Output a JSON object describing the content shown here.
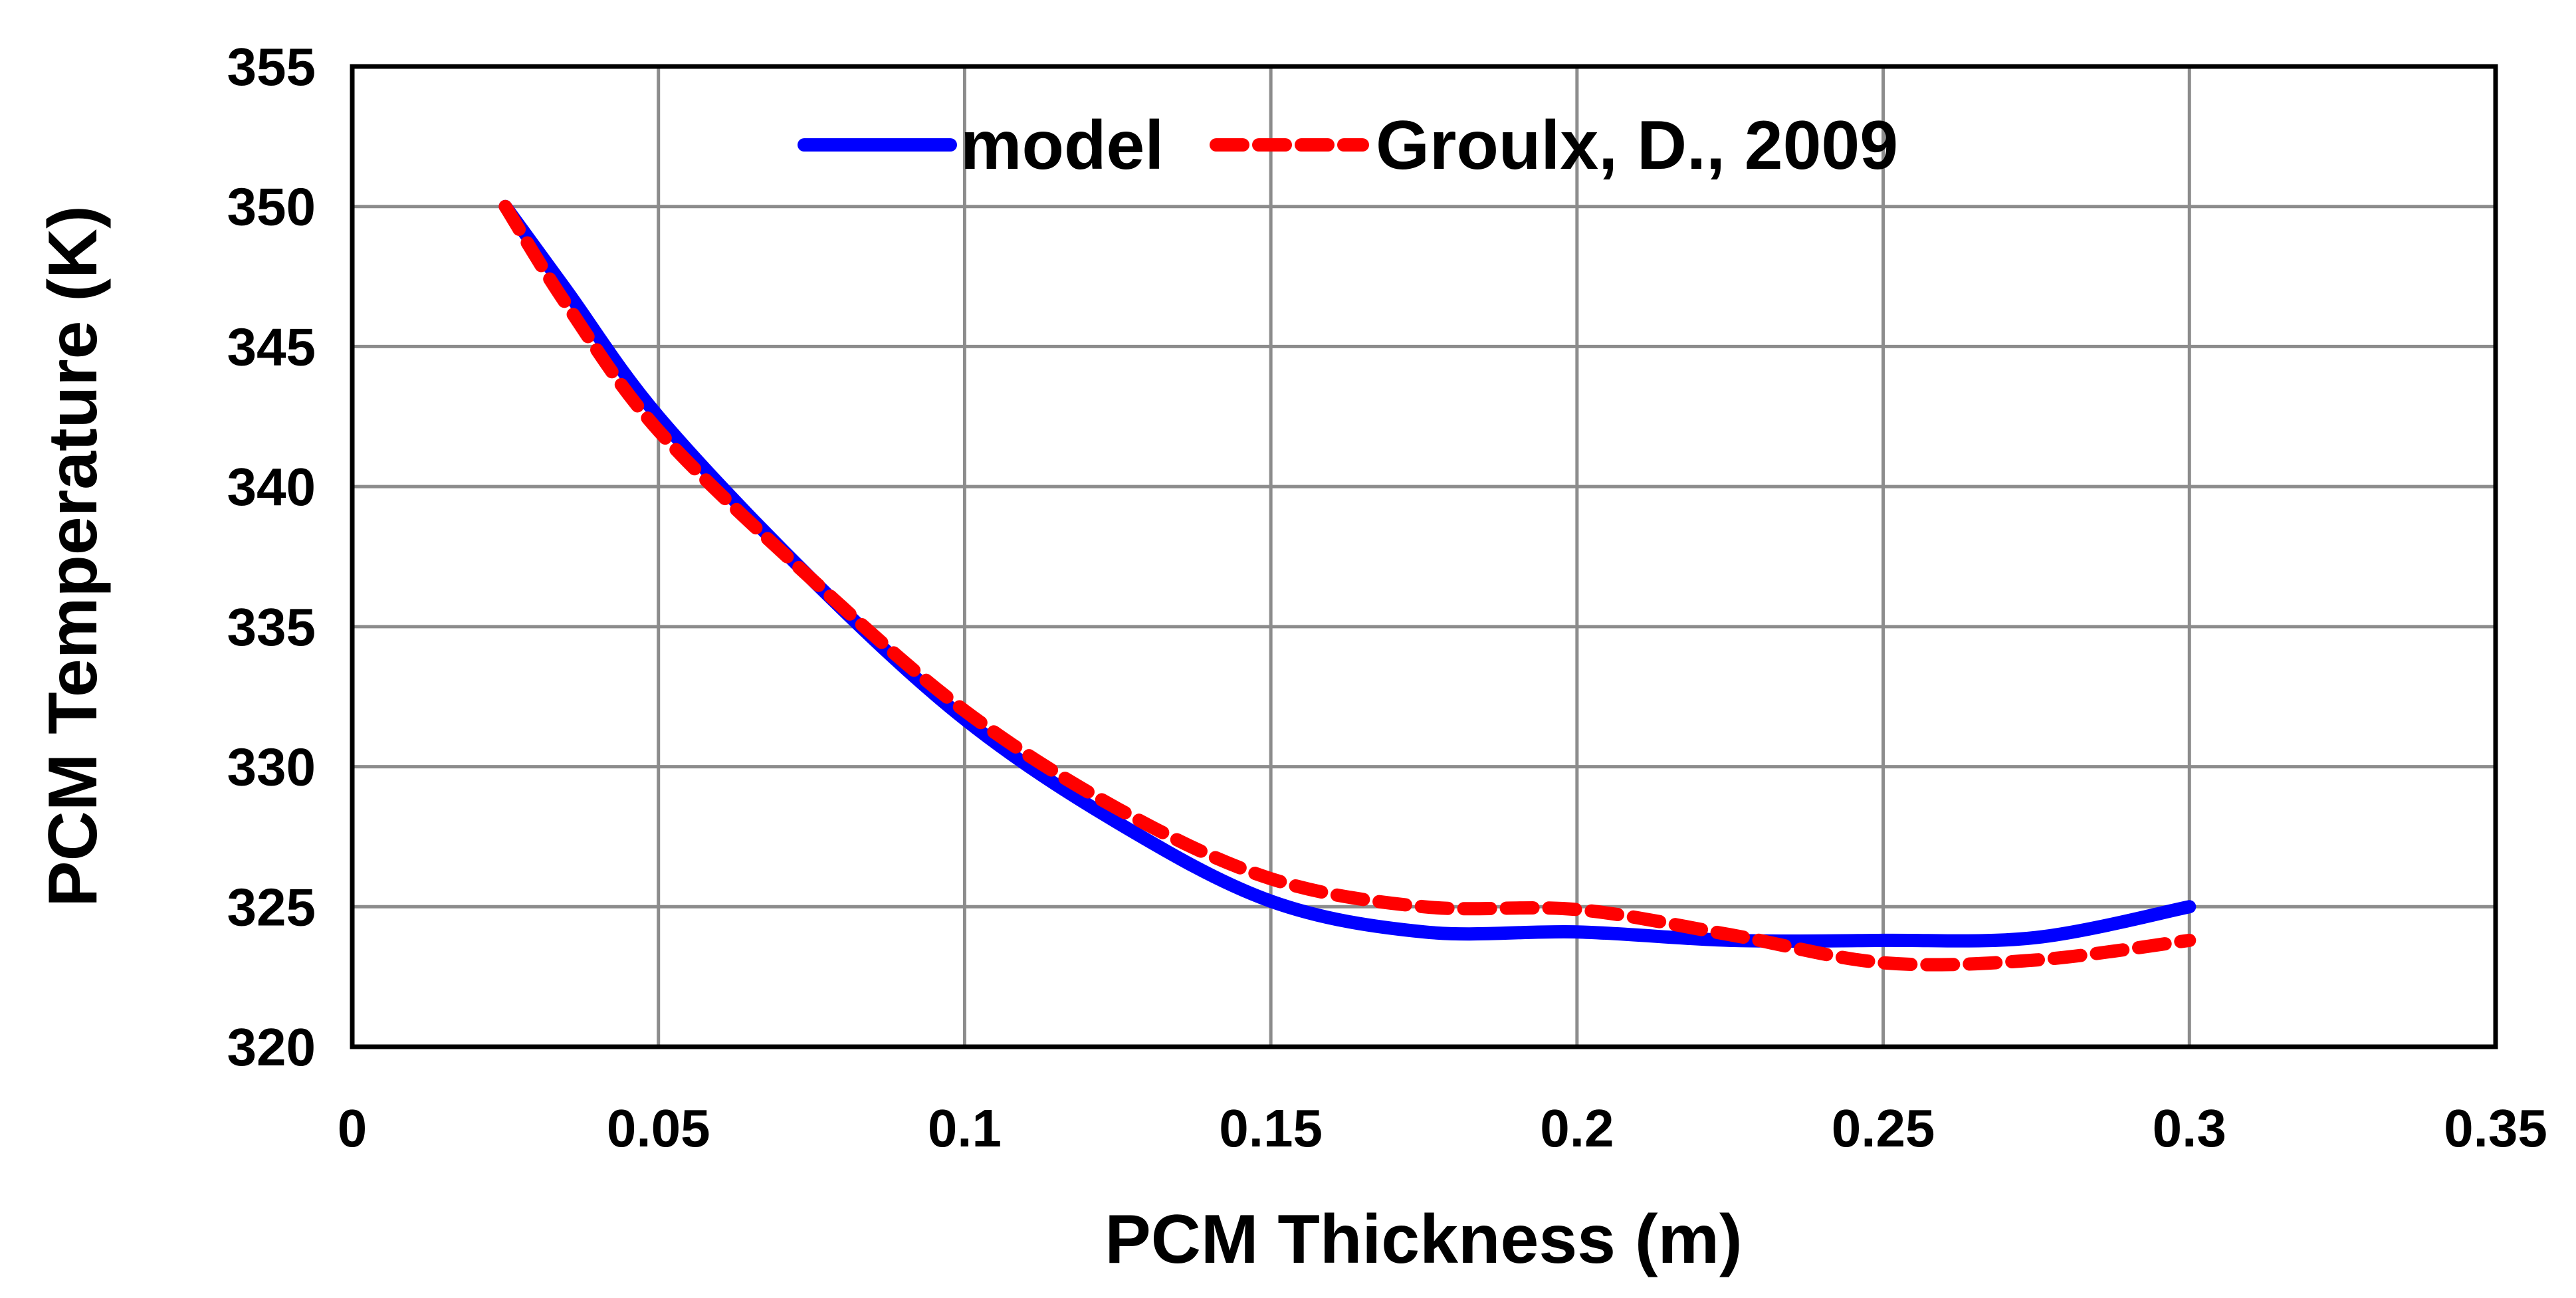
{
  "chart_data": {
    "type": "line",
    "xlabel": "PCM Thickness (m)",
    "ylabel": "PCM Temperature (K)",
    "xlim": [
      0,
      0.35
    ],
    "ylim": [
      320,
      355
    ],
    "xticks": [
      0,
      0.05,
      0.1,
      0.15,
      0.2,
      0.25,
      0.3,
      0.35
    ],
    "yticks": [
      320,
      325,
      330,
      335,
      340,
      345,
      350,
      355
    ],
    "xtick_labels": [
      "0",
      "0.05",
      "0.1",
      "0.15",
      "0.2",
      "0.25",
      "0.3",
      "0.35"
    ],
    "ytick_labels": [
      "320",
      "325",
      "330",
      "335",
      "340",
      "345",
      "350",
      "355"
    ],
    "grid": true,
    "legend_position": "top-center",
    "series": [
      {
        "name": "model",
        "color": "#0000ff",
        "style": "solid",
        "x": [
          0.025,
          0.035,
          0.05,
          0.075,
          0.1,
          0.125,
          0.15,
          0.175,
          0.2,
          0.225,
          0.25,
          0.275,
          0.3
        ],
        "y": [
          350,
          347,
          342.5,
          336.7,
          331.7,
          328,
          325.2,
          324.1,
          324.1,
          323.8,
          323.8,
          323.9,
          325
        ]
      },
      {
        "name": "Groulx, D., 2009",
        "color": "#ff0000",
        "style": "dashed",
        "x": [
          0.025,
          0.035,
          0.05,
          0.075,
          0.1,
          0.125,
          0.15,
          0.175,
          0.2,
          0.225,
          0.25,
          0.275,
          0.3
        ],
        "y": [
          350,
          346.5,
          342,
          336.7,
          332,
          328.5,
          326,
          325,
          324.9,
          324,
          323,
          323.1,
          323.8
        ]
      }
    ]
  }
}
